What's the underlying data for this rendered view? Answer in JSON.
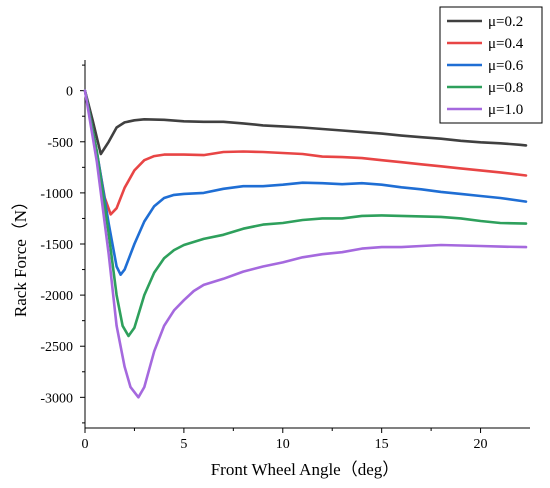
{
  "chart_data": {
    "type": "line",
    "xlabel": "Front Wheel Angle（deg）",
    "ylabel": "Rack Force（N）",
    "xlim": [
      0,
      22.5
    ],
    "ylim": [
      -3300,
      300
    ],
    "xticks": [
      0,
      5,
      10,
      15,
      20
    ],
    "yticks": [
      0,
      -500,
      -1000,
      -1500,
      -2000,
      -2500,
      -3000
    ],
    "grid": false,
    "legend_position": "top-right",
    "series": [
      {
        "name": "μ=0.2",
        "color": "#404040",
        "x": [
          0,
          0.4,
          0.8,
          1.2,
          1.6,
          2.0,
          2.5,
          3.0,
          4.0,
          5.0,
          6.0,
          7.0,
          8.0,
          9.0,
          10.0,
          11.0,
          12.0,
          13.0,
          14.0,
          15.0,
          16.0,
          17.0,
          18.0,
          19.0,
          20.0,
          21.0,
          22.0,
          22.3
        ],
        "y": [
          0,
          -300,
          -620,
          -500,
          -360,
          -310,
          -290,
          -280,
          -285,
          -300,
          -305,
          -305,
          -320,
          -340,
          -350,
          -360,
          -375,
          -390,
          -405,
          -420,
          -440,
          -455,
          -470,
          -490,
          -505,
          -515,
          -530,
          -535
        ]
      },
      {
        "name": "μ=0.4",
        "color": "#e84545",
        "x": [
          0,
          0.5,
          1.0,
          1.3,
          1.6,
          2.0,
          2.5,
          3.0,
          3.5,
          4.0,
          5.0,
          6.0,
          7.0,
          8.0,
          9.0,
          10.0,
          11.0,
          12.0,
          13.0,
          14.0,
          15.0,
          16.0,
          17.0,
          18.0,
          19.0,
          20.0,
          21.0,
          22.3
        ],
        "y": [
          0,
          -500,
          -1050,
          -1210,
          -1150,
          -950,
          -780,
          -680,
          -640,
          -625,
          -625,
          -630,
          -600,
          -595,
          -600,
          -610,
          -620,
          -645,
          -650,
          -660,
          -680,
          -700,
          -720,
          -740,
          -760,
          -780,
          -800,
          -830
        ]
      },
      {
        "name": "μ=0.6",
        "color": "#1f6ed4",
        "x": [
          0,
          0.6,
          1.2,
          1.6,
          1.8,
          2.0,
          2.5,
          3.0,
          3.5,
          4.0,
          4.5,
          5.0,
          6.0,
          7.0,
          8.0,
          9.0,
          10.0,
          11.0,
          12.0,
          13.0,
          14.0,
          15.0,
          16.0,
          17.0,
          18.0,
          19.0,
          20.0,
          21.0,
          22.3
        ],
        "y": [
          0,
          -600,
          -1300,
          -1720,
          -1800,
          -1750,
          -1500,
          -1280,
          -1130,
          -1050,
          -1020,
          -1010,
          -1000,
          -960,
          -935,
          -935,
          -920,
          -900,
          -905,
          -915,
          -905,
          -920,
          -945,
          -965,
          -990,
          -1010,
          -1030,
          -1050,
          -1085
        ]
      },
      {
        "name": "μ=0.8",
        "color": "#2ea05c",
        "x": [
          0,
          0.6,
          1.2,
          1.6,
          1.9,
          2.2,
          2.5,
          3.0,
          3.5,
          4.0,
          4.5,
          5.0,
          6.0,
          7.0,
          8.0,
          9.0,
          10.0,
          11.0,
          12.0,
          13.0,
          14.0,
          15.0,
          16.0,
          17.0,
          18.0,
          19.0,
          20.0,
          21.0,
          22.3
        ],
        "y": [
          0,
          -600,
          -1400,
          -2000,
          -2300,
          -2400,
          -2320,
          -2000,
          -1780,
          -1640,
          -1560,
          -1510,
          -1450,
          -1410,
          -1350,
          -1310,
          -1295,
          -1265,
          -1250,
          -1250,
          -1225,
          -1220,
          -1225,
          -1230,
          -1235,
          -1250,
          -1275,
          -1295,
          -1300
        ]
      },
      {
        "name": "μ=1.0",
        "color": "#a569de",
        "x": [
          0,
          0.6,
          1.2,
          1.6,
          2.0,
          2.3,
          2.7,
          3.0,
          3.5,
          4.0,
          4.5,
          5.0,
          5.5,
          6.0,
          7.0,
          8.0,
          9.0,
          10.0,
          11.0,
          12.0,
          13.0,
          14.0,
          15.0,
          16.0,
          17.0,
          18.0,
          19.0,
          20.0,
          21.0,
          22.3
        ],
        "y": [
          0,
          -700,
          -1600,
          -2300,
          -2700,
          -2900,
          -3000,
          -2900,
          -2550,
          -2300,
          -2150,
          -2050,
          -1960,
          -1900,
          -1840,
          -1770,
          -1720,
          -1680,
          -1630,
          -1600,
          -1580,
          -1545,
          -1530,
          -1530,
          -1520,
          -1510,
          -1515,
          -1520,
          -1525,
          -1530
        ]
      }
    ]
  }
}
